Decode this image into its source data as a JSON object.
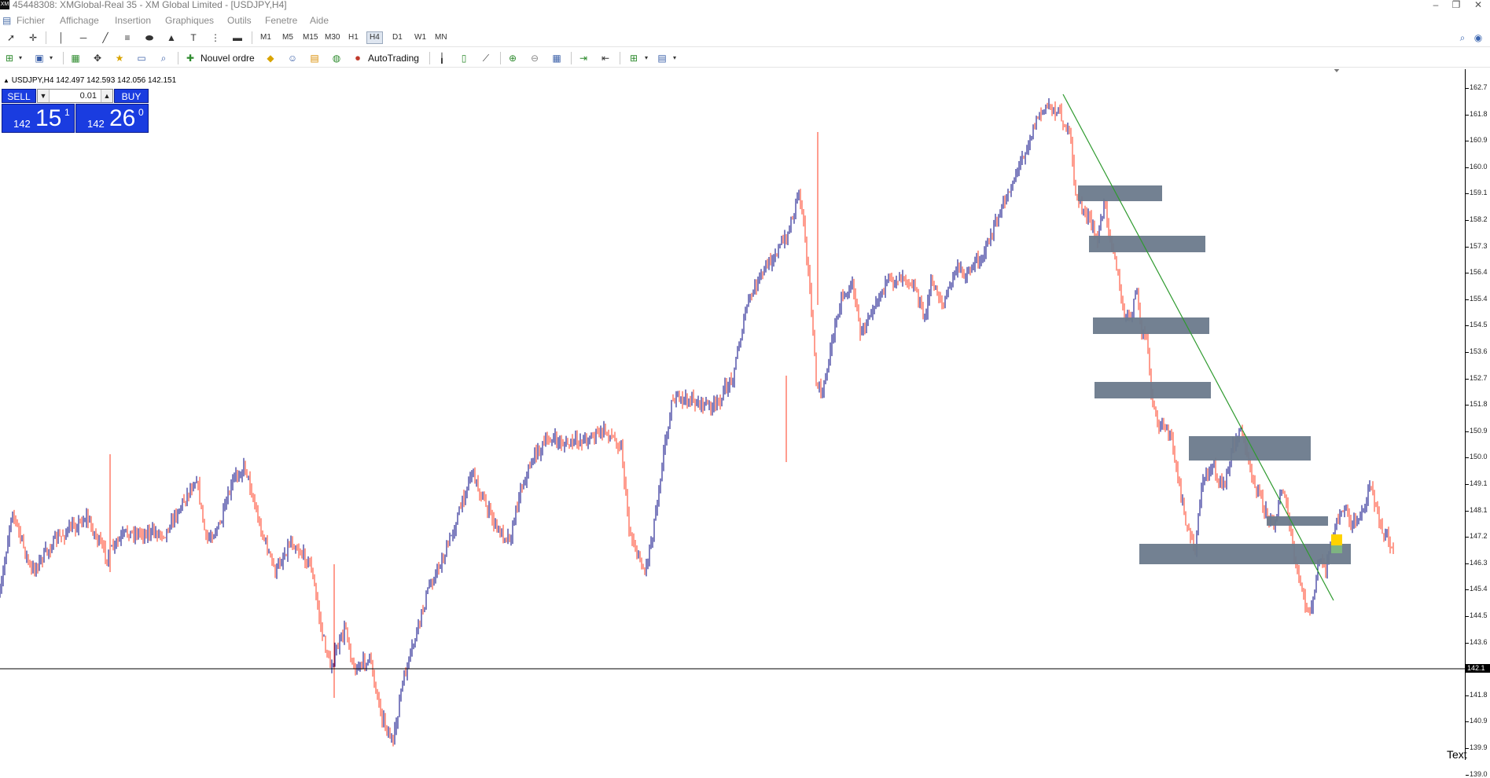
{
  "window": {
    "title": "45448308: XMGlobal-Real 35 - XM Global Limited - [USDJPY,H4]",
    "logo_text": "XM",
    "controls": [
      "–",
      "❐",
      "✕"
    ]
  },
  "menu": {
    "items": [
      "Fichier",
      "Affichage",
      "Insertion",
      "Graphiques",
      "Outils",
      "Fenetre",
      "Aide"
    ]
  },
  "toolbar1": {
    "timeframes": [
      "M1",
      "M5",
      "M15",
      "M30",
      "H1",
      "H4",
      "D1",
      "W1",
      "MN"
    ],
    "active_timeframe": "H4"
  },
  "toolbar2": {
    "new_order_label": "Nouvel ordre",
    "autotrading_label": "AutoTrading"
  },
  "chart": {
    "symbol_info": "USDJPY,H4  142.497 142.593 142.056 142.151",
    "current_price_label": "142.1",
    "price_axis_labels": [
      "162.7",
      "161.8",
      "160.9",
      "160.0",
      "159.1",
      "158.2",
      "157.3",
      "156.4",
      "155.4",
      "154.5",
      "153.6",
      "152.7",
      "151.8",
      "150.9",
      "150.0",
      "149.1",
      "148.1",
      "147.2",
      "146.3",
      "145.4",
      "144.5",
      "143.6",
      "142.7",
      "141.8",
      "140.9",
      "139.9",
      "139.0"
    ],
    "corner_text": "Text",
    "colors": {
      "bull": "#000080",
      "bear": "#ff3b1f",
      "zones": "#6b7a8c",
      "trendline": "#2e9a2e",
      "marker": "#ffd200"
    }
  },
  "one_click": {
    "sell_label": "SELL",
    "buy_label": "BUY",
    "lot": "0.01",
    "sell_small": "142",
    "sell_big": "15",
    "sell_sup": "1",
    "buy_small": "142",
    "buy_big": "26",
    "buy_sup": "0"
  }
}
